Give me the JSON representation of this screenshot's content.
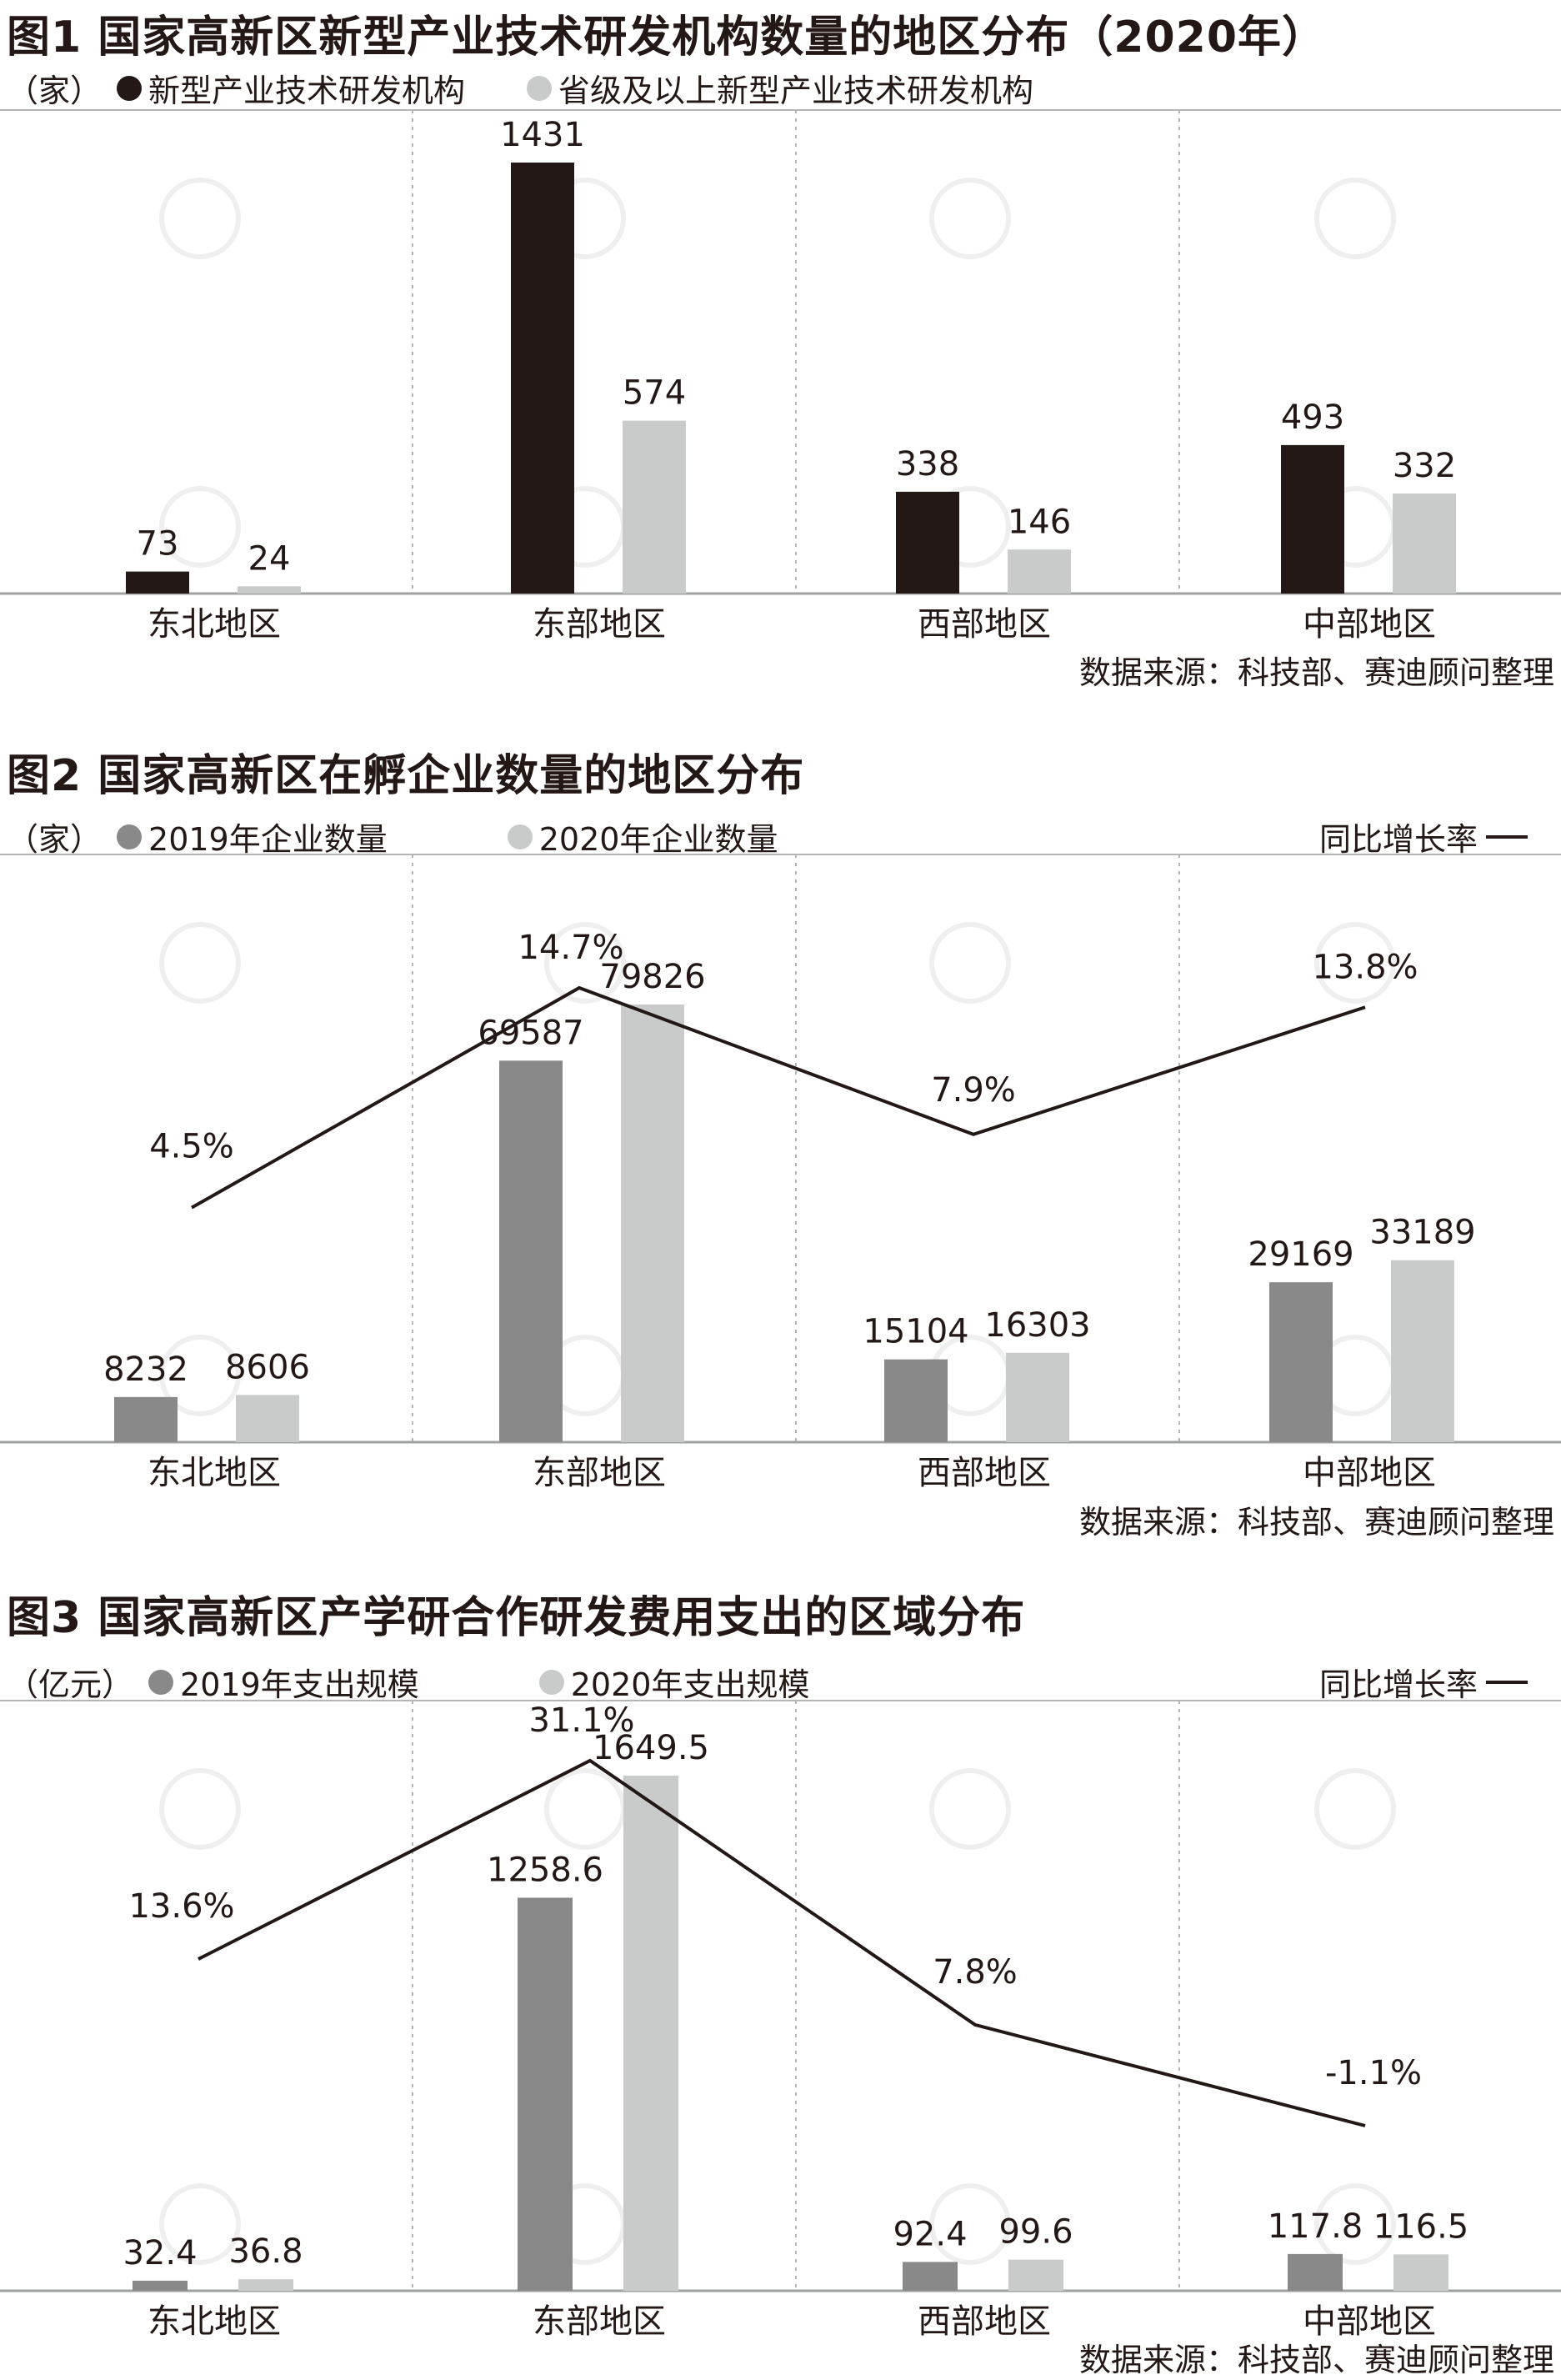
{
  "colors": {
    "black": "#231815",
    "dark_gray": "#898989",
    "light_gray": "#c9caca",
    "grid": "#b5b5b6"
  },
  "chart_data": [
    {
      "type": "bar",
      "title": "图1 国家高新区新型产业技术研发机构数量的地区分布（2020年）",
      "unit": "（家）",
      "categories": [
        "东北地区",
        "东部地区",
        "西部地区",
        "中部地区"
      ],
      "series": [
        {
          "name": "新型产业技术研发机构",
          "values": [
            73,
            1431,
            338,
            493
          ],
          "color": "#231815"
        },
        {
          "name": "省级及以上新型产业技术研发机构",
          "values": [
            24,
            574,
            146,
            332
          ],
          "color": "#c9caca"
        }
      ],
      "ylim": [
        0,
        1431
      ],
      "source": "数据来源：科技部、赛迪顾问整理"
    },
    {
      "type": "bar",
      "title": "图2  国家高新区在孵企业数量的地区分布",
      "unit": "（家）",
      "categories": [
        "东北地区",
        "东部地区",
        "西部地区",
        "中部地区"
      ],
      "series": [
        {
          "name": "2019年企业数量",
          "values": [
            8232,
            69587,
            15104,
            29169
          ],
          "color": "#898989"
        },
        {
          "name": "2020年企业数量",
          "values": [
            8606,
            79826,
            16303,
            33189
          ],
          "color": "#c9caca"
        }
      ],
      "line": {
        "name": "同比增长率",
        "values": [
          4.5,
          14.7,
          7.9,
          13.8
        ],
        "labels": [
          "4.5%",
          "14.7%",
          "7.9%",
          "13.8%"
        ],
        "ylim": [
          0,
          14.7
        ]
      },
      "ylim": [
        0,
        79826
      ],
      "source": "数据来源：科技部、赛迪顾问整理"
    },
    {
      "type": "bar",
      "title": "图3 国家高新区产学研合作研发费用支出的区域分布",
      "unit": "（亿元）",
      "categories": [
        "东北地区",
        "东部地区",
        "西部地区",
        "中部地区"
      ],
      "series": [
        {
          "name": "2019年支出规模",
          "values": [
            32.4,
            1258.6,
            92.4,
            117.8
          ],
          "labels": [
            "32.4",
            "1258.6",
            "92.4",
            "117.8"
          ],
          "color": "#898989"
        },
        {
          "name": "2020年支出规模",
          "values": [
            36.8,
            1649.5,
            99.6,
            116.5
          ],
          "labels": [
            "36.8",
            "1649.5",
            "99.6",
            "116.5"
          ],
          "color": "#c9caca"
        }
      ],
      "line": {
        "name": "同比增长率",
        "values": [
          13.6,
          31.1,
          7.8,
          -1.1
        ],
        "labels": [
          "13.6%",
          "31.1%",
          "7.8%",
          "-1.1%"
        ],
        "ylim": [
          -1.1,
          31.1
        ]
      },
      "ylim": [
        0,
        1649.5
      ],
      "source": "数据来源：科技部、赛迪顾问整理"
    }
  ]
}
